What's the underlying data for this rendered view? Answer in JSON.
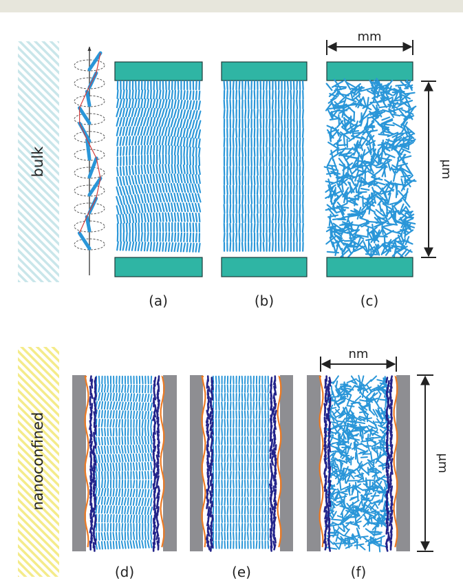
{
  "labels": {
    "bulk": "bulk",
    "nanoconfined": "nanoconfined",
    "panel_a": "(a)",
    "panel_b": "(b)",
    "panel_c": "(c)",
    "panel_d": "(d)",
    "panel_e": "(e)",
    "panel_f": "(f)",
    "scale_mm": "mm",
    "scale_nm": "nm",
    "scale_um_top": "μm",
    "scale_um_bottom": "μm"
  },
  "colors": {
    "top_bar": "#e7e6dc",
    "bulk_stripe": "#c9e6ea",
    "nano_stripe": "#f4eb8a",
    "plate_fill": "#2fb5a4",
    "molecule": "#2a96d8",
    "wall": "#8e8e92",
    "interface": "#ee7a22",
    "surface_molecule": "#22238a",
    "guide_red": "#d23a3a"
  }
}
